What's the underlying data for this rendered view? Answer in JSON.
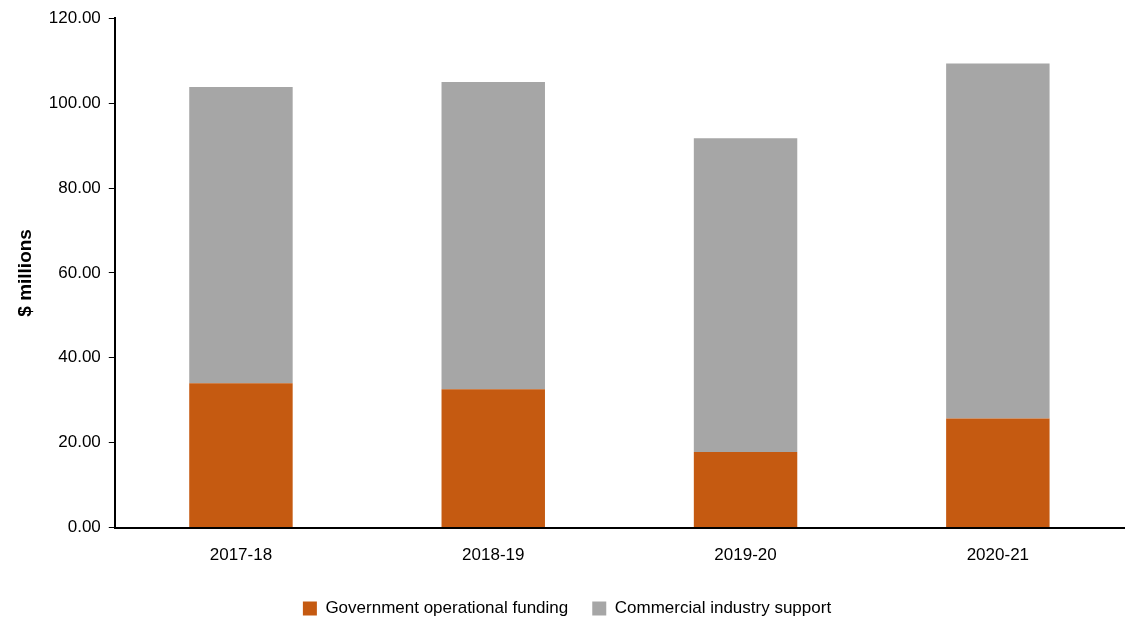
{
  "chart_data": {
    "type": "bar",
    "ylabel": "$ millions",
    "categories": [
      "2017-18",
      "2018-19",
      "2019-20",
      "2020-21"
    ],
    "stacked": true,
    "series": [
      {
        "name": "Government operational funding",
        "color": "#c55a11",
        "values": [
          34.0,
          32.6,
          17.8,
          25.7
        ]
      },
      {
        "name": "Commercial industry support",
        "color": "#a6a6a6",
        "values": [
          69.8,
          72.4,
          73.9,
          83.6
        ]
      }
    ],
    "ylim": [
      0,
      120
    ],
    "yticks": [
      {
        "value": 0,
        "label": "0.00"
      },
      {
        "value": 20,
        "label": "20.00"
      },
      {
        "value": 40,
        "label": "40.00"
      },
      {
        "value": 60,
        "label": "60.00"
      },
      {
        "value": 80,
        "label": "80.00"
      },
      {
        "value": 100,
        "label": "100.00"
      },
      {
        "value": 120,
        "label": "120.00"
      }
    ],
    "grid": false,
    "legend": "bottom"
  }
}
